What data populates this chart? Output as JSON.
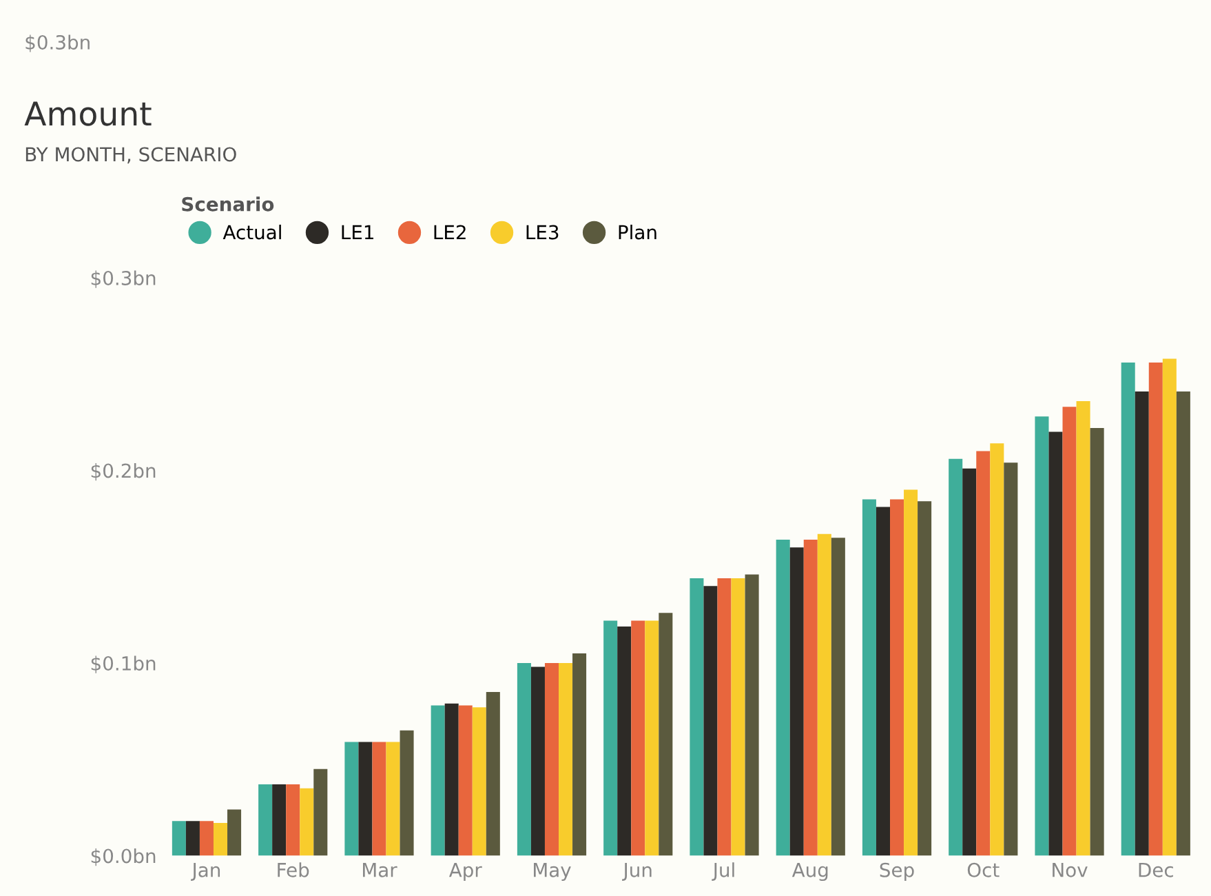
{
  "chart_data": {
    "type": "bar",
    "title": "Amount",
    "subtitle": "BY MONTH, SCENARIO",
    "legend_title": "Scenario",
    "annotations": [
      "$0.3bn"
    ],
    "categories": [
      "Jan",
      "Feb",
      "Mar",
      "Apr",
      "May",
      "Jun",
      "Jul",
      "Aug",
      "Sep",
      "Oct",
      "Nov",
      "Dec"
    ],
    "series": [
      {
        "name": "Actual",
        "color": "#3fae9a",
        "values": [
          0.018,
          0.037,
          0.059,
          0.078,
          0.1,
          0.122,
          0.144,
          0.164,
          0.185,
          0.206,
          0.228,
          0.256
        ]
      },
      {
        "name": "LE1",
        "color": "#2d2a26",
        "values": [
          0.018,
          0.037,
          0.059,
          0.079,
          0.098,
          0.119,
          0.14,
          0.16,
          0.181,
          0.201,
          0.22,
          0.241
        ]
      },
      {
        "name": "LE2",
        "color": "#e8663d",
        "values": [
          0.018,
          0.037,
          0.059,
          0.078,
          0.1,
          0.122,
          0.144,
          0.164,
          0.185,
          0.21,
          0.233,
          0.256
        ]
      },
      {
        "name": "LE3",
        "color": "#f8cc2c",
        "values": [
          0.017,
          0.035,
          0.059,
          0.077,
          0.1,
          0.122,
          0.144,
          0.167,
          0.19,
          0.214,
          0.236,
          0.258
        ]
      },
      {
        "name": "Plan",
        "color": "#5b5a3e",
        "values": [
          0.024,
          0.045,
          0.065,
          0.085,
          0.105,
          0.126,
          0.146,
          0.165,
          0.184,
          0.204,
          0.222,
          0.241
        ]
      }
    ],
    "ylim": [
      0,
      0.3
    ],
    "yticks": [
      {
        "value": 0,
        "label": "$0.0bn"
      },
      {
        "value": 0.1,
        "label": "$0.1bn"
      },
      {
        "value": 0.2,
        "label": "$0.2bn"
      },
      {
        "value": 0.3,
        "label": "$0.3bn"
      }
    ],
    "grid": false,
    "legend": "top left",
    "marker": "circle"
  }
}
